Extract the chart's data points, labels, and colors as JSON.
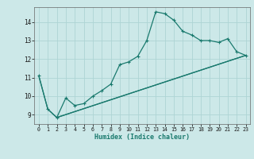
{
  "xlabel": "Humidex (Indice chaleur)",
  "bg_color": "#cce8e8",
  "line_color": "#1a7a6e",
  "grid_color": "#aed4d4",
  "xlim": [
    -0.5,
    23.5
  ],
  "ylim": [
    8.5,
    14.8
  ],
  "yticks": [
    9,
    10,
    11,
    12,
    13,
    14
  ],
  "xticks": [
    0,
    1,
    2,
    3,
    4,
    5,
    6,
    7,
    8,
    9,
    10,
    11,
    12,
    13,
    14,
    15,
    16,
    17,
    18,
    19,
    20,
    21,
    22,
    23
  ],
  "line1_x": [
    0,
    1,
    2,
    3,
    4,
    5,
    6,
    7,
    8,
    9,
    10,
    11,
    12,
    13,
    14,
    15,
    16,
    17,
    18,
    19,
    20,
    21,
    22,
    23
  ],
  "line1_y": [
    11.1,
    9.3,
    8.85,
    9.9,
    9.5,
    9.6,
    10.0,
    10.3,
    10.65,
    11.7,
    11.85,
    12.15,
    13.0,
    14.55,
    14.45,
    14.1,
    13.5,
    13.3,
    13.0,
    13.0,
    12.9,
    13.1,
    12.4,
    12.2
  ],
  "line2_x": [
    0,
    1,
    2,
    23
  ],
  "line2_y": [
    11.1,
    9.3,
    8.85,
    12.2
  ],
  "line3_x": [
    2,
    23
  ],
  "line3_y": [
    8.85,
    12.2
  ]
}
